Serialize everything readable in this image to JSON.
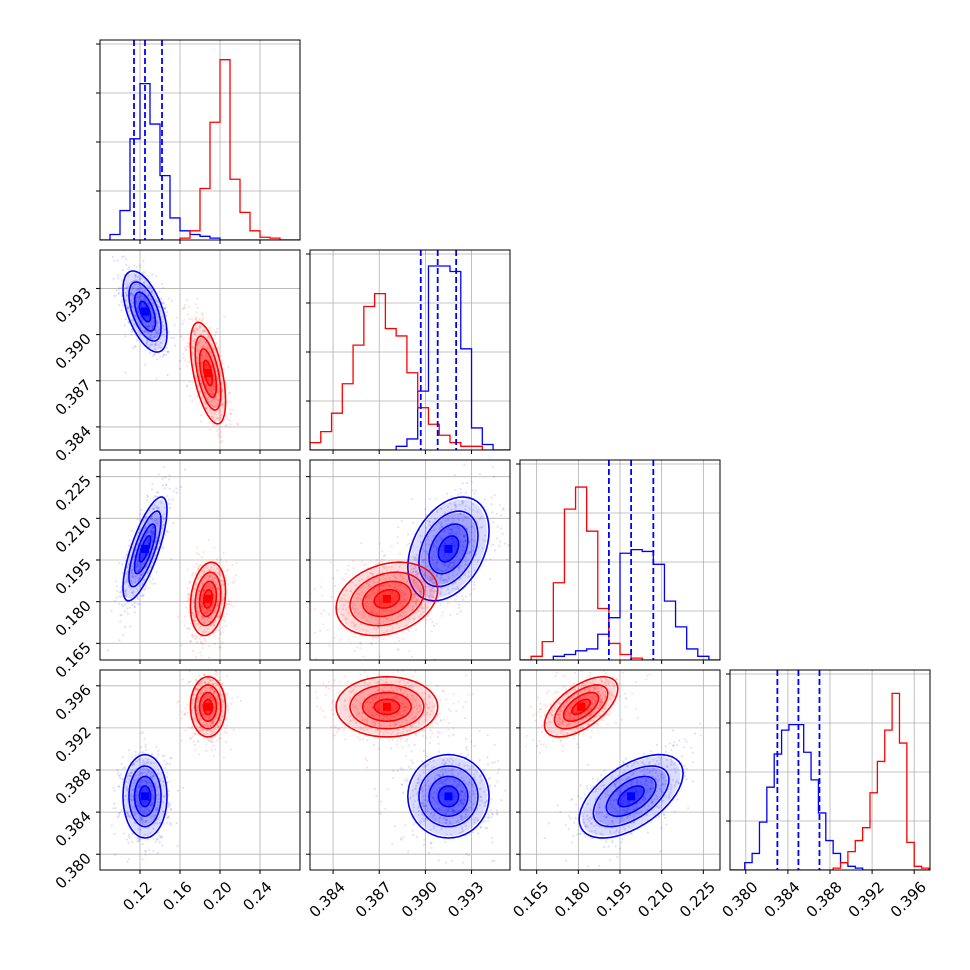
{
  "chart_data": {
    "type": "corner",
    "parameters": [
      {
        "range": [
          0.08,
          0.28
        ],
        "ticks": [
          "0.12",
          "0.16",
          "0.20",
          "0.24"
        ],
        "tick_values": [
          0.12,
          0.16,
          0.2,
          0.24
        ]
      },
      {
        "range": [
          0.3825,
          0.3955
        ],
        "ticks": [
          "0.384",
          "0.387",
          "0.390",
          "0.393"
        ],
        "tick_values": [
          0.384,
          0.387,
          0.39,
          0.393
        ]
      },
      {
        "range": [
          0.159,
          0.231
        ],
        "ticks": [
          "0.165",
          "0.180",
          "0.195",
          "0.210",
          "0.225"
        ],
        "tick_values": [
          0.165,
          0.18,
          0.195,
          0.21,
          0.225
        ]
      },
      {
        "range": [
          0.3785,
          0.3975
        ],
        "ticks": [
          "0.380",
          "0.384",
          "0.388",
          "0.392",
          "0.396"
        ],
        "tick_values": [
          0.38,
          0.384,
          0.388,
          0.392,
          0.396
        ]
      }
    ],
    "series": [
      {
        "color": "#0000ff",
        "means": [
          0.125,
          0.3915,
          0.199,
          0.3855
        ],
        "sds": [
          0.01,
          0.0012,
          0.0085,
          0.0018
        ],
        "quantiles": [
          [
            0.114,
            0.125,
            0.142
          ],
          [
            0.3897,
            0.3908,
            0.392
          ],
          [
            0.191,
            0.199,
            0.207
          ],
          [
            0.383,
            0.385,
            0.387
          ]
        ]
      },
      {
        "color": "#ff0000",
        "means": [
          0.188,
          0.3875,
          0.181,
          0.394
        ],
        "sds": [
          0.008,
          0.0015,
          0.006,
          0.0013
        ],
        "quantiles": null
      }
    ],
    "histograms": [
      {
        "edges": [
          0.08,
          0.09,
          0.1,
          0.11,
          0.12,
          0.13,
          0.14,
          0.15,
          0.16,
          0.17,
          0.18,
          0.19,
          0.2,
          0.21,
          0.22,
          0.23,
          0.24,
          0.25,
          0.26,
          0.27,
          0.28
        ],
        "blue": [
          0,
          0.03,
          0.16,
          0.55,
          0.85,
          0.63,
          0.35,
          0.12,
          0.05,
          0.03,
          0.02,
          0.01,
          0,
          0,
          0,
          0,
          0,
          0,
          0,
          0
        ],
        "red": [
          0,
          0,
          0,
          0,
          0,
          0,
          0,
          0,
          0.01,
          0.05,
          0.28,
          0.64,
          0.98,
          0.33,
          0.15,
          0.05,
          0.015,
          0.01,
          0,
          0
        ]
      },
      {
        "edges": [
          0.3825,
          0.3832,
          0.3839,
          0.3846,
          0.3853,
          0.386,
          0.3867,
          0.3874,
          0.3881,
          0.3888,
          0.3895,
          0.3902,
          0.3909,
          0.3916,
          0.3923,
          0.393,
          0.3937,
          0.3944,
          0.3951,
          0.3958
        ],
        "blue": [
          0,
          0,
          0,
          0,
          0,
          0,
          0,
          0,
          0.02,
          0.06,
          0.32,
          1.0,
          1.0,
          0.97,
          0.55,
          0.12,
          0.03,
          0,
          0
        ],
        "red": [
          0.04,
          0.1,
          0.2,
          0.36,
          0.57,
          0.78,
          0.85,
          0.66,
          0.62,
          0.42,
          0.23,
          0.14,
          0.08,
          0.04,
          0.02,
          0.02,
          0,
          0,
          0
        ]
      },
      {
        "edges": [
          0.159,
          0.163,
          0.167,
          0.171,
          0.175,
          0.179,
          0.183,
          0.187,
          0.191,
          0.195,
          0.199,
          0.203,
          0.207,
          0.211,
          0.215,
          0.219,
          0.223,
          0.227,
          0.231
        ],
        "blue": [
          0,
          0,
          0,
          0.02,
          0.03,
          0.05,
          0.06,
          0.14,
          0.23,
          0.58,
          0.6,
          0.59,
          0.52,
          0.32,
          0.18,
          0.06,
          0.02,
          0
        ],
        "red": [
          0,
          0.02,
          0.1,
          0.42,
          0.82,
          0.94,
          0.7,
          0.28,
          0.09,
          0.03,
          0.01,
          0,
          0,
          0,
          0,
          0,
          0,
          0
        ]
      },
      {
        "edges": [
          0.3785,
          0.3792,
          0.3799,
          0.3806,
          0.3813,
          0.382,
          0.3827,
          0.3834,
          0.3841,
          0.3848,
          0.3855,
          0.3862,
          0.3869,
          0.3876,
          0.3883,
          0.389,
          0.3897,
          0.3904,
          0.3911,
          0.3918,
          0.3925,
          0.3932,
          0.3939,
          0.3946,
          0.3953,
          0.396,
          0.3967,
          0.3974
        ],
        "blue": [
          0,
          0,
          0.04,
          0.09,
          0.26,
          0.45,
          0.63,
          0.76,
          0.79,
          0.79,
          0.64,
          0.49,
          0.31,
          0.16,
          0.09,
          0.04,
          0.02,
          0.01,
          0,
          0,
          0,
          0,
          0,
          0,
          0,
          0,
          0
        ],
        "red": [
          0,
          0,
          0,
          0,
          0,
          0,
          0,
          0,
          0,
          0,
          0,
          0,
          0,
          0,
          0.01,
          0.04,
          0.1,
          0.16,
          0.23,
          0.42,
          0.59,
          0.76,
          0.96,
          0.69,
          0.15,
          0.02,
          0.01
        ]
      }
    ],
    "grid": true,
    "colors": {
      "blue": "#0000ff",
      "red": "#ff0000",
      "grid": "#b0b0b0"
    }
  }
}
